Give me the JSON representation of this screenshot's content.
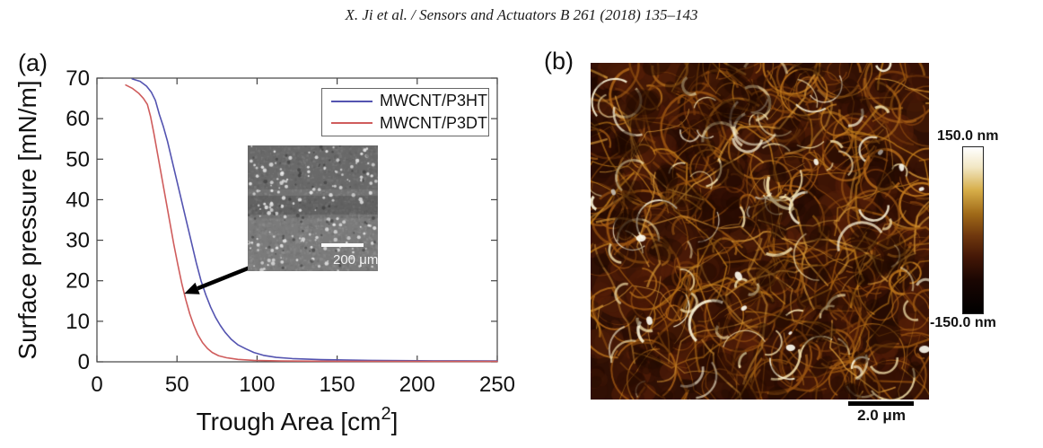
{
  "header": {
    "citation": "X. Ji et al. / Sensors and Actuators B 261 (2018) 135–143"
  },
  "panel_a": {
    "label": "(a)",
    "inset_scale_bar": "200 μm"
  },
  "panel_b": {
    "label": "(b)",
    "scale_bar": "2.0 μm",
    "colorbar": {
      "max": "150.0 nm",
      "min": "-150.0 nm",
      "gradient_colors": [
        "#ffffff",
        "#f2e7c4",
        "#d6ad48",
        "#a06a18",
        "#70380e",
        "#441706",
        "#1a0602",
        "#000000"
      ],
      "gradient_stops_pct": [
        0,
        12,
        26,
        40,
        53,
        66,
        80,
        100
      ]
    }
  },
  "chart_data": {
    "type": "line",
    "title": "",
    "xlabel": "Trough Area [cm²]",
    "xlabel_parts": [
      "Trough Area [cm",
      "2",
      "]"
    ],
    "ylabel": "Surface pressure [mN/m]",
    "xlim": [
      0,
      250
    ],
    "ylim": [
      0,
      70
    ],
    "xticks": [
      0,
      50,
      100,
      150,
      200,
      250
    ],
    "yticks": [
      0,
      10,
      20,
      30,
      40,
      50,
      60,
      70
    ],
    "grid": false,
    "legend_position": "top-right",
    "series": [
      {
        "name": "MWCNT/P3HT",
        "color": "#5353b0",
        "x": [
          22,
          27,
          31,
          34,
          36.5,
          39,
          41.5,
          44,
          47,
          50,
          53,
          56,
          59,
          62,
          65,
          68,
          71,
          74,
          77,
          80,
          84,
          88,
          93,
          98,
          104,
          112,
          122,
          140,
          170,
          210,
          250
        ],
        "y": [
          69.8,
          69.2,
          68,
          66.5,
          64.5,
          61,
          58,
          54.5,
          49.5,
          44.5,
          39.5,
          34.5,
          29.5,
          24.5,
          20,
          16.5,
          13.5,
          11,
          9,
          7.3,
          5.5,
          4.2,
          3.2,
          2.3,
          1.6,
          1.1,
          0.8,
          0.55,
          0.35,
          0.25,
          0.22
        ]
      },
      {
        "name": "MWCNT/P3DT",
        "color": "#cf5c5c",
        "x": [
          18,
          22,
          26,
          29,
          31.5,
          33.5,
          35.5,
          38,
          40.5,
          43,
          45.5,
          48,
          50.5,
          53,
          55.5,
          58,
          60.5,
          63,
          66,
          69,
          72,
          76,
          81,
          88,
          98,
          115,
          150,
          250
        ],
        "y": [
          68.3,
          67.5,
          66.3,
          65,
          63.5,
          60.5,
          56.5,
          51,
          45.5,
          40,
          34.5,
          29,
          24,
          19.3,
          15.3,
          11.8,
          9,
          6.7,
          4.7,
          3.3,
          2.3,
          1.5,
          1.0,
          0.6,
          0.35,
          0.2,
          0.12,
          0.1
        ]
      }
    ],
    "annotation": {
      "type": "arrow",
      "from": [
        97,
        23.5
      ],
      "to": [
        54.5,
        16.8
      ],
      "color": "#000000"
    }
  }
}
